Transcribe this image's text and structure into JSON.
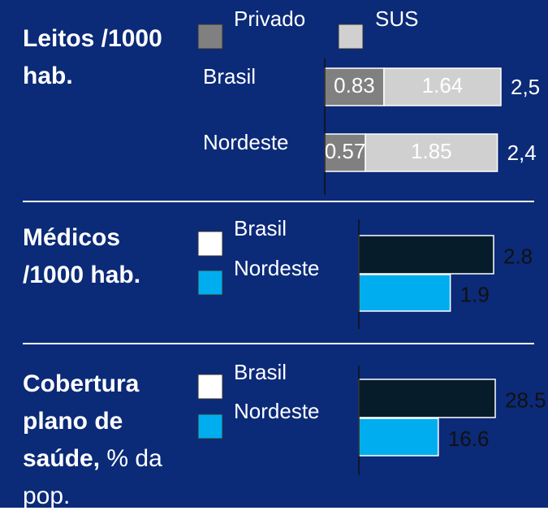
{
  "chart_data": [
    {
      "type": "stacked_bar_h",
      "title": "Leitos /1000 hab.",
      "categories": [
        "Brasil",
        "Nordeste"
      ],
      "series": [
        {
          "name": "Privado",
          "color": "#808080",
          "values": [
            0.83,
            0.57
          ]
        },
        {
          "name": "SUS",
          "color": "#d0d0d0",
          "values": [
            1.64,
            1.85
          ]
        }
      ],
      "totals": [
        2.5,
        2.4
      ],
      "total_labels": [
        "2,5",
        "2,4"
      ]
    },
    {
      "type": "bar_h",
      "title": "Médicos /1000 hab.",
      "series": [
        {
          "name": "Brasil",
          "color": "#061c2b",
          "legend_color": "#ffffff",
          "values": [
            2.8
          ]
        },
        {
          "name": "Nordeste",
          "color": "#00aeef",
          "legend_color": "#00aeef",
          "values": [
            1.9
          ]
        }
      ]
    },
    {
      "type": "bar_h",
      "title": "Cobertura plano de saúde,",
      "subtitle": "% da pop.",
      "series": [
        {
          "name": "Brasil",
          "color": "#061c2b",
          "legend_color": "#ffffff",
          "values": [
            28.5
          ]
        },
        {
          "name": "Nordeste",
          "color": "#00aeef",
          "legend_color": "#00aeef",
          "values": [
            16.6
          ]
        }
      ]
    }
  ]
}
